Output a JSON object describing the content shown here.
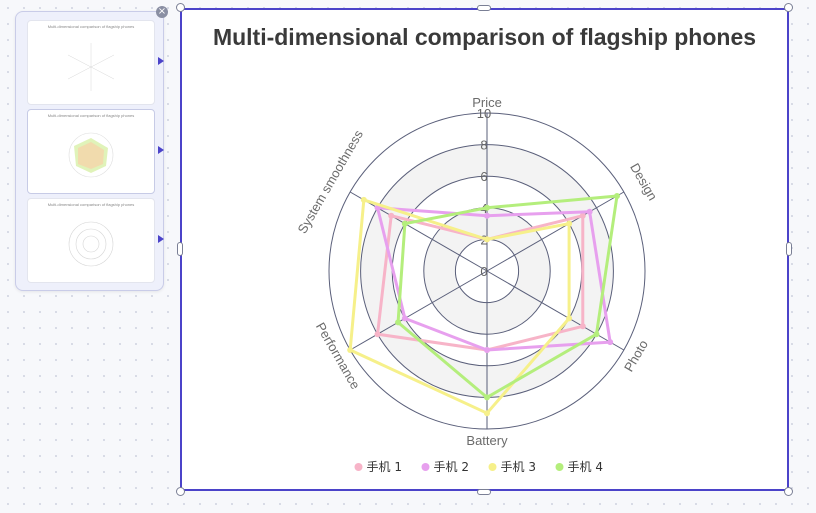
{
  "thumbnails": [
    {
      "title": "Multi-dimensional comparison of flagship phones"
    },
    {
      "title": "Multi-dimensional comparison of flagship phones"
    },
    {
      "title": "Multi-dimensional comparison of flagship phones"
    }
  ],
  "colors": {
    "accent": "#4b43c9",
    "series": [
      "#f7b4c8",
      "#e7a0ee",
      "#f6f08a",
      "#b4ee7c"
    ]
  },
  "chart_data": {
    "type": "radar",
    "title": "Multi-dimensional comparison of flagship phones",
    "indicators": [
      "Price",
      "Design",
      "Photo",
      "Battery",
      "Performance",
      "System smoothness"
    ],
    "radial_ticks": [
      "0",
      "2",
      "4",
      "6",
      "8",
      "10"
    ],
    "max": 10,
    "series": [
      {
        "name": "手机 1",
        "values": [
          2,
          7,
          7,
          5,
          8,
          7
        ]
      },
      {
        "name": "手机 2",
        "values": [
          3.5,
          7.5,
          9,
          5,
          6,
          8
        ]
      },
      {
        "name": "手机 3",
        "values": [
          2,
          6,
          6,
          9,
          10,
          9
        ]
      },
      {
        "name": "手机 4",
        "values": [
          4,
          9.5,
          8,
          8,
          6.5,
          6
        ]
      }
    ],
    "legend_position": "bottom-center"
  }
}
